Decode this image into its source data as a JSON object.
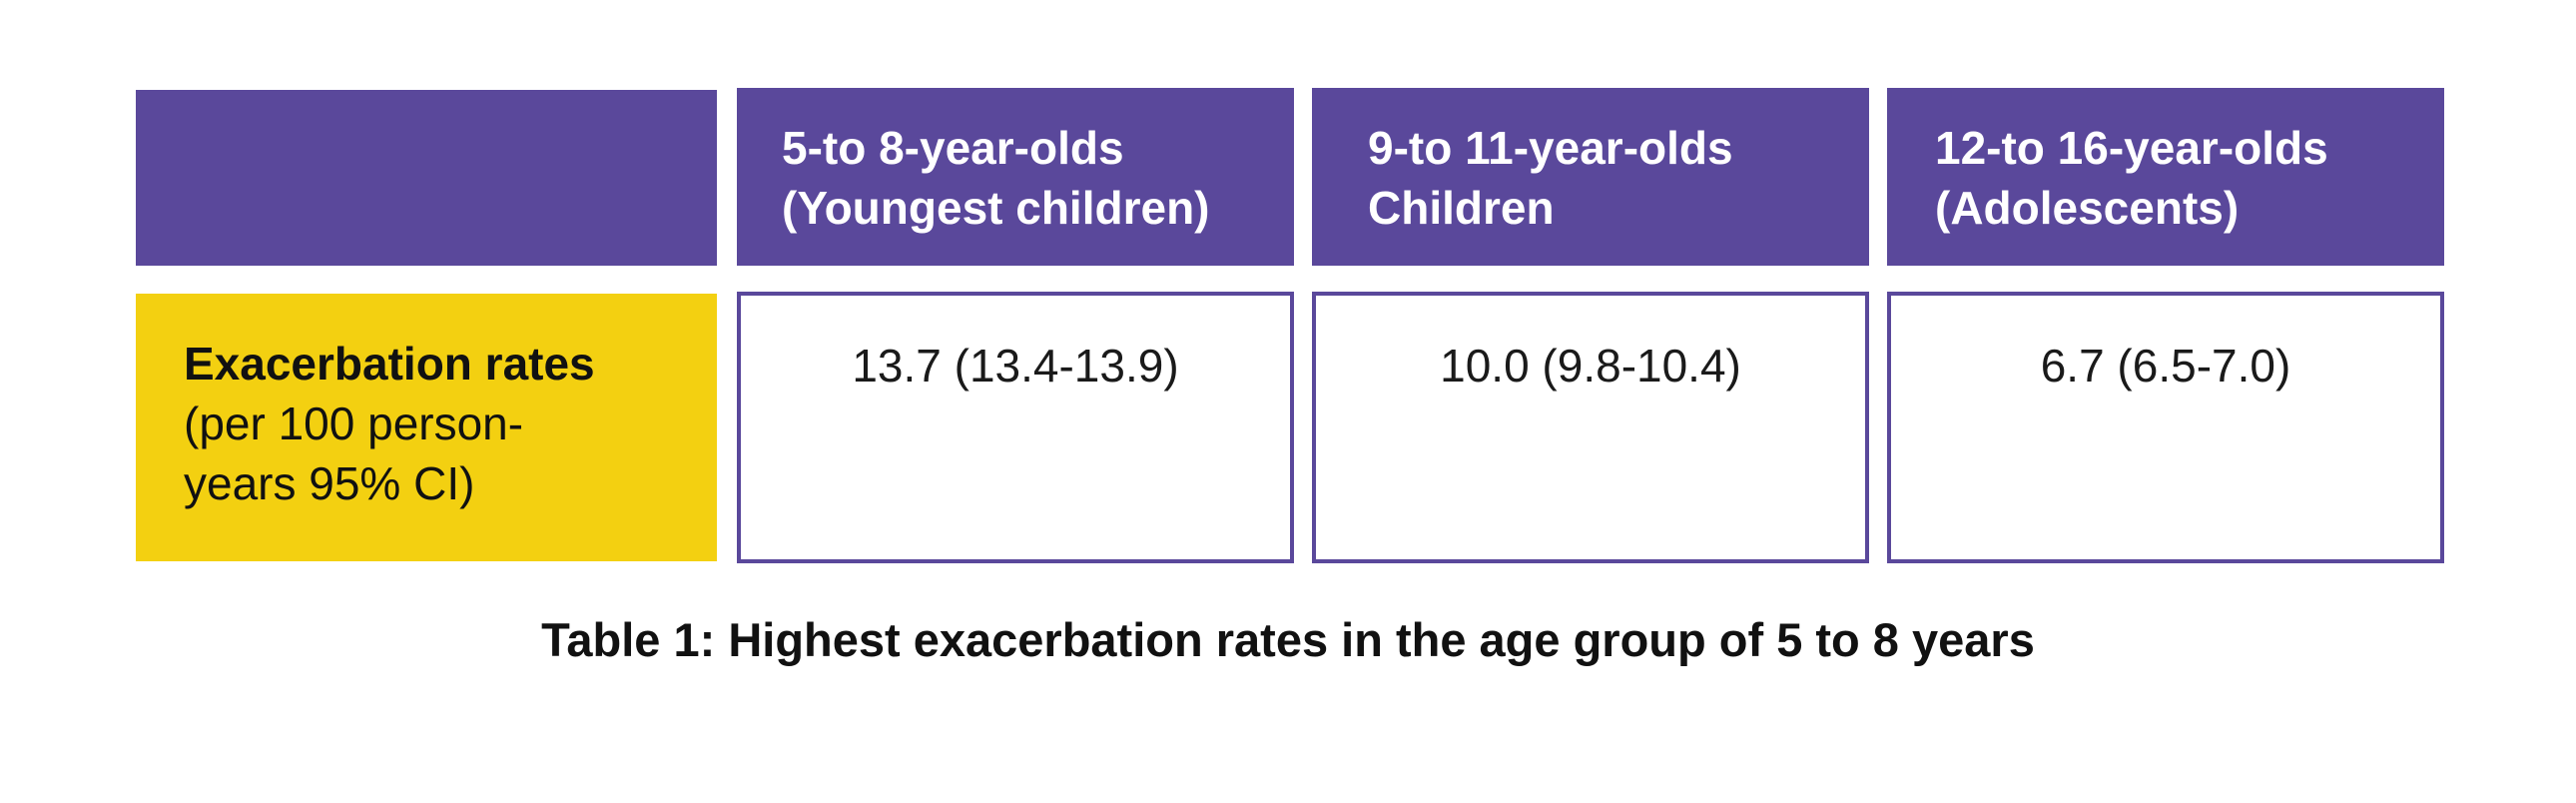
{
  "colors": {
    "header_purple": "#5a489b",
    "label_yellow": "#f3d011",
    "border_purple": "#5a489b"
  },
  "table": {
    "columns": [
      {
        "line1": "5-to 8-year-olds",
        "line2": "(Youngest children)"
      },
      {
        "line1": "9-to 11-year-olds",
        "line2": "Children"
      },
      {
        "line1": "12-to 16-year-olds",
        "line2": "(Adolescents)"
      }
    ],
    "row": {
      "label_bold": "Exacerbation rates",
      "label_line2": "(per 100 person-",
      "label_line3": "years 95% CI)",
      "values": [
        "13.7 (13.4-13.9)",
        "10.0 (9.8-10.4)",
        "6.7 (6.5-7.0)"
      ]
    }
  },
  "caption": "Table 1: Highest exacerbation rates in the age group of 5 to 8 years"
}
